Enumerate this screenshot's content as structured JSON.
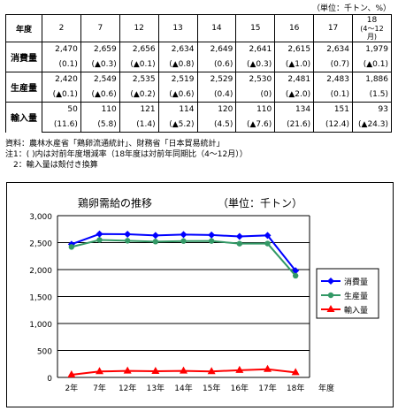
{
  "unit_note": "（単位：千トン、%）",
  "table": {
    "header_label": "年度",
    "years": [
      "2",
      "7",
      "12",
      "13",
      "14",
      "15",
      "16",
      "17",
      "18"
    ],
    "year18_sub": "(4〜12月)",
    "rows": [
      {
        "label": "消費量",
        "values": [
          "2,470",
          "2,659",
          "2,656",
          "2,634",
          "2,649",
          "2,641",
          "2,615",
          "2,634",
          "1,979"
        ],
        "changes": [
          "(0.1)",
          "(▲0.3)",
          "(▲0.1)",
          "(▲0.8)",
          "(0.6)",
          "(▲0.3)",
          "(▲1.0)",
          "(0.7)",
          "(▲0.1)"
        ]
      },
      {
        "label": "生産量",
        "values": [
          "2,420",
          "2,549",
          "2,535",
          "2,519",
          "2,529",
          "2,530",
          "2,481",
          "2,483",
          "1,886"
        ],
        "changes": [
          "(▲0.1)",
          "(▲0.6)",
          "(▲0.2)",
          "(▲0.6)",
          "(0.4)",
          "(0)",
          "(▲2.0)",
          "(0.1)",
          "(1.5)"
        ]
      },
      {
        "label": "輸入量",
        "values": [
          "50",
          "110",
          "121",
          "114",
          "120",
          "110",
          "134",
          "151",
          "93"
        ],
        "changes": [
          "(11.6)",
          "(5.8)",
          "(1.4)",
          "(▲5.2)",
          "(4.5)",
          "(▲7.6)",
          "(21.6)",
          "(12.4)",
          "(▲24.3)"
        ]
      }
    ]
  },
  "notes": {
    "source": "資料：農林水産省「鶏卵流通統計」、財務省「日本貿易統計」",
    "note1": "注1：( )内は対前年度増減率（18年度は対前年同期比（4〜12月））",
    "note2": "　2：輸入量は殻付き換算"
  },
  "colors": {
    "consumption": "#0000ff",
    "production": "#339966",
    "import": "#ff0000"
  },
  "chart_data": {
    "type": "line",
    "title": "鶏卵需給の推移",
    "unit_label": "（単位：千トン）",
    "categories": [
      "2年",
      "7年",
      "12年",
      "13年",
      "14年",
      "15年",
      "16年",
      "17年",
      "18年"
    ],
    "xlabel": "年度",
    "ylim": [
      0,
      3000
    ],
    "yticks": [
      "0",
      "500",
      "1,000",
      "1,500",
      "2,000",
      "2,500",
      "3,000"
    ],
    "grid": true,
    "legend_position": "right",
    "series": [
      {
        "name": "消費量",
        "marker": "diamond",
        "values": [
          2470,
          2659,
          2656,
          2634,
          2649,
          2641,
          2615,
          2634,
          1979
        ]
      },
      {
        "name": "生産量",
        "marker": "circle",
        "values": [
          2420,
          2549,
          2535,
          2519,
          2529,
          2530,
          2481,
          2483,
          1886
        ]
      },
      {
        "name": "輸入量",
        "marker": "triangle",
        "values": [
          50,
          110,
          121,
          114,
          120,
          110,
          134,
          151,
          93
        ]
      }
    ]
  }
}
